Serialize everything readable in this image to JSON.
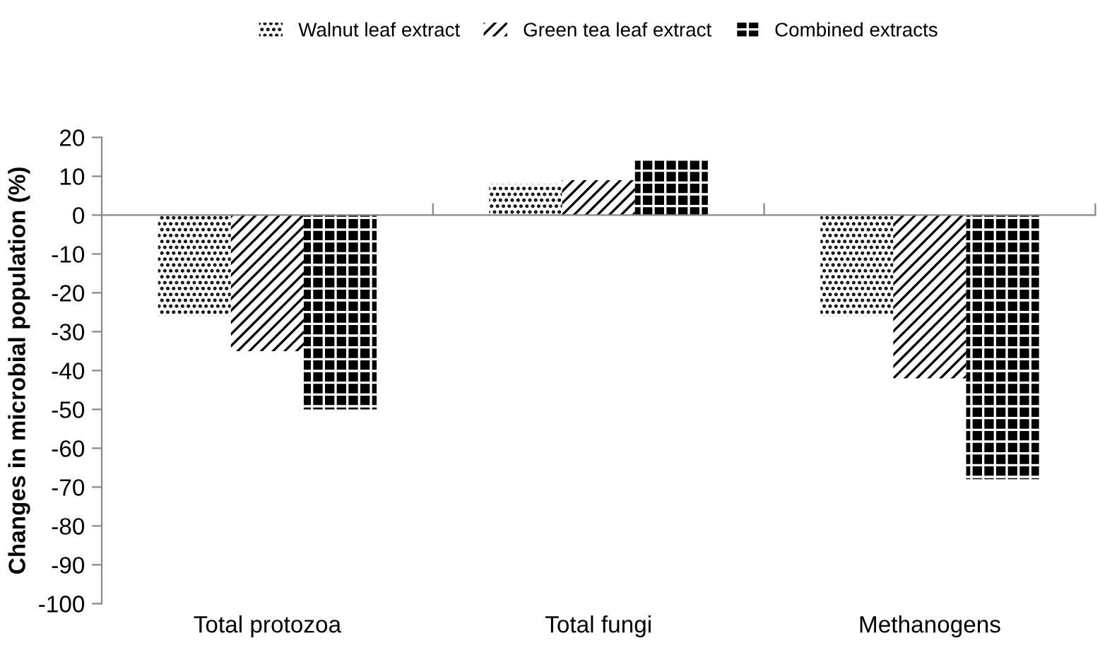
{
  "chart_data": {
    "type": "bar",
    "ylabel": "Changes in microbial population (%)",
    "categories": [
      "Total protozoa",
      "Total fungi",
      "Methanogens"
    ],
    "series": [
      {
        "name": "Walnut leaf extract",
        "color": "#000000",
        "values": [
          -26,
          8,
          -26
        ]
      },
      {
        "name": "Green tea leaf extract",
        "color": "#000000",
        "values": [
          -35,
          9,
          -42
        ]
      },
      {
        "name": "Combined extracts",
        "color": "#000000",
        "values": [
          -50,
          14,
          -68
        ]
      }
    ],
    "ylim": [
      -100,
      20
    ],
    "yticks": [
      20,
      10,
      0,
      -10,
      -20,
      -30,
      -40,
      -50,
      -60,
      -70,
      -80,
      -90,
      -100
    ],
    "legend": "top"
  }
}
